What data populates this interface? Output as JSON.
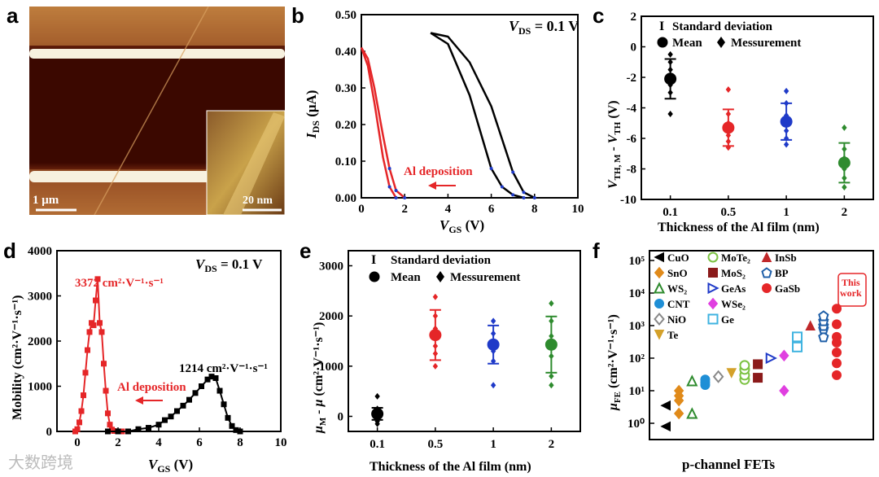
{
  "panel_labels": [
    "a",
    "b",
    "c",
    "d",
    "e",
    "f"
  ],
  "watermark": "大数跨境",
  "colors": {
    "red": "#e52628",
    "blue": "#1f3ac8",
    "green": "#2e8b2e",
    "black": "#000000",
    "gold": "#e7b53b",
    "brown": "#a52a22"
  },
  "panel_a": {
    "scale_main": "1 μm",
    "scale_inset": "20 nm"
  },
  "chart_data": [
    {
      "id": "b",
      "type": "line",
      "xlabel": "V_GS (V)",
      "ylabel": "I_DS (μA)",
      "xlim": [
        0,
        10
      ],
      "ylim": [
        0,
        0.5
      ],
      "xticks": [
        0,
        2,
        4,
        6,
        8,
        10
      ],
      "yticks": [
        0.0,
        0.1,
        0.2,
        0.3,
        0.4,
        0.5
      ],
      "ytick_labels": [
        "0.00",
        "0.10",
        "0.20",
        "0.30",
        "0.40",
        "0.50"
      ],
      "annotation": "V_DS = 0.1 V",
      "arrow_label": "Al deposition",
      "series": [
        {
          "name": "Before (sweep 1)",
          "color": "#000000",
          "x": [
            3.2,
            4,
            5,
            6,
            6.5,
            7,
            7.5,
            8
          ],
          "y": [
            0.45,
            0.44,
            0.37,
            0.25,
            0.16,
            0.07,
            0.015,
            0.0
          ]
        },
        {
          "name": "Before (sweep 2)",
          "color": "#000000",
          "x": [
            3.2,
            4,
            5,
            5.7,
            6,
            6.5,
            7,
            7.5
          ],
          "y": [
            0.45,
            0.42,
            0.28,
            0.14,
            0.08,
            0.03,
            0.008,
            0.0
          ]
        },
        {
          "name": "After (sweep 1)",
          "color": "#e52628",
          "x": [
            0,
            0.3,
            0.6,
            1,
            1.3,
            1.6,
            2
          ],
          "y": [
            0.41,
            0.38,
            0.3,
            0.17,
            0.08,
            0.02,
            0.0
          ]
        },
        {
          "name": "After (sweep 2)",
          "color": "#e52628",
          "x": [
            0,
            0.3,
            0.6,
            1,
            1.3,
            1.6
          ],
          "y": [
            0.41,
            0.36,
            0.26,
            0.11,
            0.03,
            0.0
          ]
        }
      ]
    },
    {
      "id": "c",
      "type": "scatter",
      "xlabel": "Thickness of the Al film (nm)",
      "ylabel": "V_TH, M - V_TH (V)",
      "categories": [
        "0.1",
        "0.5",
        "1",
        "2"
      ],
      "ylim": [
        -10,
        2
      ],
      "yticks": [
        2,
        0,
        -2,
        -4,
        -6,
        -8,
        -10
      ],
      "legend": [
        "Standard deviation",
        "Mean",
        "Messurement"
      ],
      "series": [
        {
          "name": "0.1 nm",
          "color": "#000000",
          "mean": -2.1,
          "sd": 1.3,
          "points": [
            -0.5,
            -1.0,
            -1.5,
            -2.5,
            -3.0,
            -4.4
          ]
        },
        {
          "name": "0.5 nm",
          "color": "#e52628",
          "mean": -5.3,
          "sd": 1.2,
          "points": [
            -2.8,
            -4.4,
            -5.0,
            -5.8,
            -6.2,
            -6.6
          ]
        },
        {
          "name": "1 nm",
          "color": "#1f3ac8",
          "mean": -4.9,
          "sd": 1.2,
          "points": [
            -2.9,
            -3.7,
            -4.5,
            -5.5,
            -6.0,
            -6.4
          ]
        },
        {
          "name": "2 nm",
          "color": "#2e8b2e",
          "mean": -7.6,
          "sd": 1.3,
          "points": [
            -5.3,
            -6.7,
            -7.3,
            -8.0,
            -8.6,
            -9.2
          ]
        }
      ]
    },
    {
      "id": "d",
      "type": "scatter",
      "xlabel": "V_GS (V)",
      "ylabel": "Mobility (cm²·V⁻¹·s⁻¹)",
      "xlim": [
        -1,
        10
      ],
      "ylim": [
        0,
        4000
      ],
      "xticks": [
        0,
        2,
        4,
        6,
        8,
        10
      ],
      "yticks": [
        0,
        1000,
        2000,
        3000,
        4000
      ],
      "annotation": "V_DS = 0.1 V",
      "arrow_label": "Al deposition",
      "peak_labels": [
        "3372 cm²·V⁻¹·s⁻¹",
        "1214 cm²·V⁻¹·s⁻¹"
      ],
      "series": [
        {
          "name": "After",
          "color": "#e52628",
          "x": [
            -0.1,
            0,
            0.1,
            0.2,
            0.3,
            0.4,
            0.5,
            0.6,
            0.7,
            0.8,
            0.9,
            1.0,
            1.1,
            1.2,
            1.3,
            1.4,
            1.5,
            1.6,
            1.7,
            1.8,
            2.0,
            2.2,
            2.5
          ],
          "y": [
            0,
            50,
            200,
            450,
            800,
            1300,
            1800,
            2200,
            2400,
            2350,
            2900,
            3372,
            2400,
            2200,
            1500,
            900,
            400,
            150,
            40,
            10,
            0,
            0,
            0
          ]
        },
        {
          "name": "Before",
          "color": "#000000",
          "x": [
            1.5,
            2,
            2.5,
            3,
            3.5,
            4,
            4.3,
            4.6,
            4.9,
            5.2,
            5.5,
            5.8,
            6.1,
            6.4,
            6.6,
            6.8,
            7.0,
            7.2,
            7.4,
            7.6,
            7.8,
            8.0
          ],
          "y": [
            0,
            0,
            0,
            50,
            80,
            150,
            250,
            330,
            450,
            570,
            700,
            850,
            1000,
            1150,
            1214,
            1180,
            900,
            600,
            300,
            120,
            30,
            0
          ]
        }
      ]
    },
    {
      "id": "e",
      "type": "scatter",
      "xlabel": "Thickness of the Al film (nm)",
      "ylabel": "μ_M - μ (cm²·V⁻¹·s⁻¹)",
      "categories": [
        "0.1",
        "0.5",
        "1",
        "2"
      ],
      "ylim": [
        -300,
        3300
      ],
      "yticks": [
        0,
        1000,
        2000,
        3000
      ],
      "legend": [
        "Standard deviation",
        "Mean",
        "Messurement"
      ],
      "series": [
        {
          "name": "0.1 nm",
          "color": "#000000",
          "mean": 50,
          "sd": 120,
          "points": [
            400,
            150,
            80,
            -20,
            -100,
            -150
          ]
        },
        {
          "name": "0.5 nm",
          "color": "#e52628",
          "mean": 1620,
          "sd": 500,
          "points": [
            2380,
            2000,
            1750,
            1400,
            1250,
            1000
          ]
        },
        {
          "name": "1 nm",
          "color": "#1f3ac8",
          "mean": 1430,
          "sd": 380,
          "points": [
            1900,
            1650,
            1500,
            1300,
            1100,
            620
          ]
        },
        {
          "name": "2 nm",
          "color": "#2e8b2e",
          "mean": 1430,
          "sd": 560,
          "points": [
            2250,
            1900,
            1600,
            1200,
            800,
            620
          ]
        }
      ]
    },
    {
      "id": "f",
      "type": "scatter",
      "xlabel": "p-channel FETs",
      "ylabel": "μ_FE (cm²·V⁻¹·s⁻¹)",
      "yscale": "log",
      "ylim_exp": [
        -0.5,
        5.3
      ],
      "ytick_labels": [
        "10⁰",
        "10¹",
        "10²",
        "10³",
        "10⁴",
        "10⁵"
      ],
      "callout": "This work",
      "series": [
        {
          "name": "CuO",
          "color": "#000000",
          "marker": "tri-left",
          "values": [
            0.8,
            3.5
          ]
        },
        {
          "name": "SnO",
          "color": "#e08a1a",
          "marker": "diamond",
          "values": [
            2,
            5,
            7,
            10
          ]
        },
        {
          "name": "WS₂",
          "color": "#2e8b2e",
          "marker": "tri-open",
          "values": [
            2,
            20
          ]
        },
        {
          "name": "CNT",
          "color": "#1f8fd6",
          "marker": "circle",
          "values": [
            15,
            18,
            22
          ]
        },
        {
          "name": "NiO",
          "color": "#888888",
          "marker": "diamond-open",
          "values": [
            27
          ]
        },
        {
          "name": "Te",
          "color": "#d4a12a",
          "marker": "tri-down",
          "values": [
            35
          ]
        },
        {
          "name": "MoTe₂",
          "color": "#7cc242",
          "marker": "circle-open",
          "values": [
            22,
            30,
            45,
            60
          ]
        },
        {
          "name": "MoS₂",
          "color": "#8b1a1a",
          "marker": "square",
          "values": [
            25,
            65
          ]
        },
        {
          "name": "GeAs",
          "color": "#1f3ac8",
          "marker": "tri-right-open",
          "values": [
            100
          ]
        },
        {
          "name": "WSe₂",
          "color": "#e03fe0",
          "marker": "diamond",
          "values": [
            10,
            120
          ]
        },
        {
          "name": "Ge",
          "color": "#3fb3e0",
          "marker": "square-open",
          "values": [
            220,
            450
          ]
        },
        {
          "name": "InSb",
          "color": "#c0282a",
          "marker": "triangle",
          "values": [
            1000
          ]
        },
        {
          "name": "BP",
          "color": "#1f5fa8",
          "marker": "pentagon",
          "values": [
            450,
            800,
            1000,
            1400,
            2000
          ]
        },
        {
          "name": "GaSb",
          "color": "#e52628",
          "marker": "circle",
          "values": [
            30,
            70,
            150,
            300,
            450,
            1100,
            3300
          ]
        }
      ]
    }
  ]
}
